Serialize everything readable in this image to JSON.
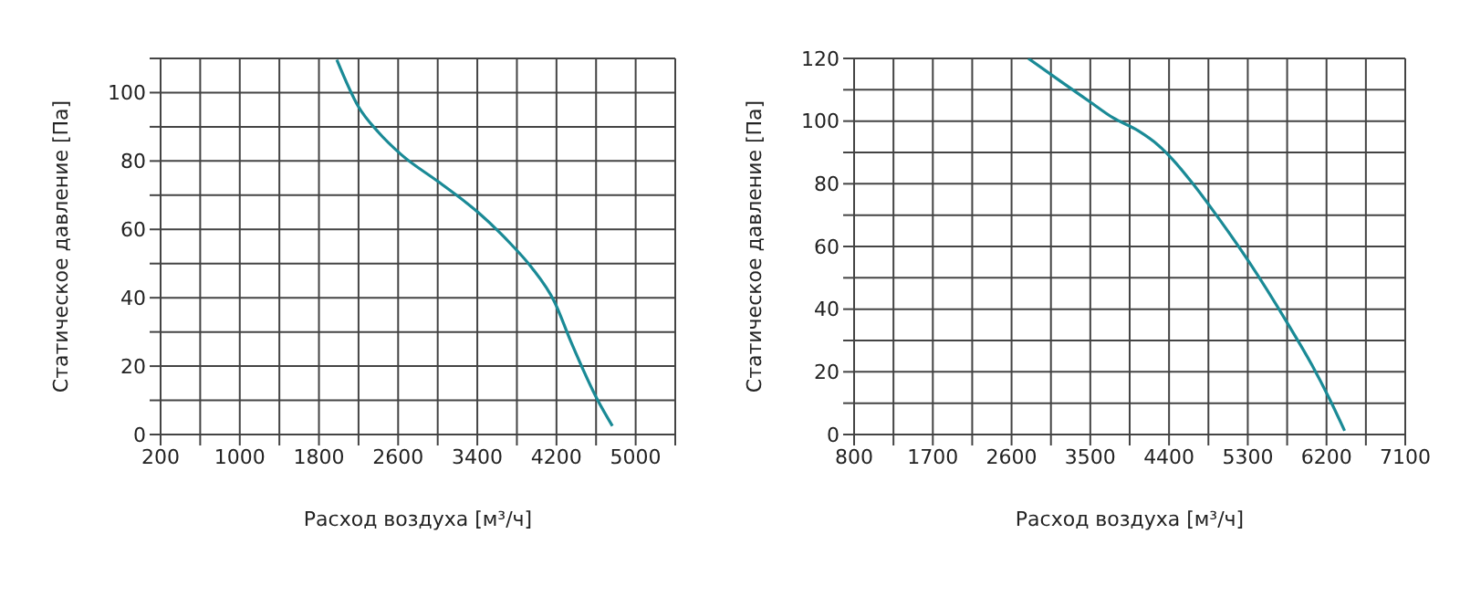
{
  "chart_data": [
    {
      "type": "line",
      "xlabel": "Расход воздуха [м³/ч]",
      "ylabel": "Статическое давление [Па]",
      "grid": true,
      "marker": "none",
      "line_style": "solid",
      "x": [
        1981,
        2197,
        2398,
        2634,
        3003,
        3407,
        3743,
        3945,
        4180,
        4348,
        4617,
        4765
      ],
      "series": [
        {
          "color": "#1a8a96",
          "values": [
            109.6,
            96,
            88.5,
            81.8,
            74,
            65,
            55.6,
            49,
            38.8,
            27,
            10,
            2.5
          ]
        }
      ],
      "xlim": [
        200,
        5400
      ],
      "xticks": [
        200,
        {
          "value": 600,
          "label": null
        },
        1000,
        {
          "value": 1400,
          "label": null
        },
        1800,
        {
          "value": 2200,
          "label": null
        },
        2600,
        {
          "value": 3000,
          "label": null
        },
        3400,
        {
          "value": 3800,
          "label": null
        },
        4200,
        {
          "value": 4600,
          "label": null
        },
        5000,
        {
          "value": 5400,
          "label": null
        }
      ],
      "ylim": [
        0,
        110
      ],
      "yticks": [
        0,
        {
          "value": 10,
          "label": null
        },
        20,
        {
          "value": 30,
          "label": null
        },
        40,
        {
          "value": 50,
          "label": null
        },
        60,
        {
          "value": 70,
          "label": null
        },
        80,
        {
          "value": 90,
          "label": null
        },
        100,
        {
          "value": 110,
          "label": null
        }
      ]
    },
    {
      "type": "line",
      "xlabel": "Расход воздуха [м³/ч]",
      "ylabel": "Статическое давление [Па]",
      "grid": true,
      "marker": "none",
      "line_style": "solid",
      "x": [
        2791,
        3165,
        3484,
        3763,
        4042,
        4281,
        4440,
        4679,
        4918,
        5316,
        5754,
        6033,
        6232,
        6407
      ],
      "series": [
        {
          "color": "#1a8a96",
          "values": [
            120,
            112.6,
            106.4,
            101,
            97,
            92.2,
            87.8,
            79.8,
            70.9,
            55,
            35.5,
            22.2,
            11.5,
            1.2
          ]
        }
      ],
      "xlim": [
        800,
        7100
      ],
      "xticks": [
        800,
        {
          "value": 1250,
          "label": null
        },
        1700,
        {
          "value": 2150,
          "label": null
        },
        2600,
        {
          "value": 3050,
          "label": null
        },
        3500,
        {
          "value": 3950,
          "label": null
        },
        4400,
        {
          "value": 4850,
          "label": null
        },
        5300,
        {
          "value": 5750,
          "label": null
        },
        6200,
        {
          "value": 6650,
          "label": null
        },
        7100
      ],
      "ylim": [
        0,
        120
      ],
      "yticks": [
        0,
        {
          "value": 10,
          "label": null
        },
        20,
        {
          "value": 30,
          "label": null
        },
        40,
        {
          "value": 50,
          "label": null
        },
        60,
        {
          "value": 70,
          "label": null
        },
        80,
        {
          "value": 90,
          "label": null
        },
        100,
        {
          "value": 110,
          "label": null
        },
        120
      ]
    }
  ]
}
